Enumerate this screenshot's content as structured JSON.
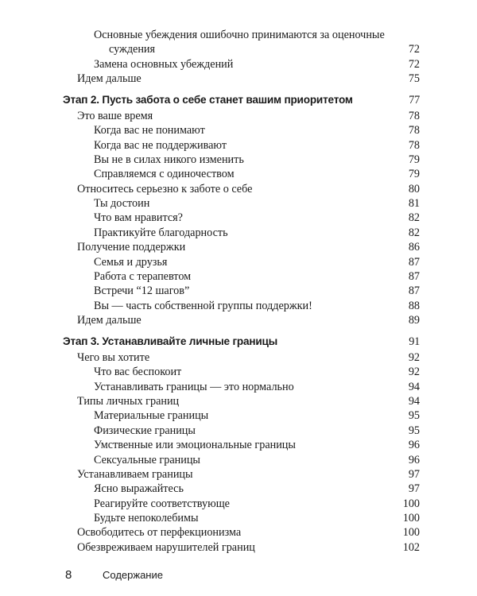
{
  "entries": [
    {
      "level": 2,
      "text": "Основные убеждения ошибочно принимаются за оценочные",
      "page": ""
    },
    {
      "level": "cont",
      "text": "суждения",
      "page": "72"
    },
    {
      "level": 2,
      "text": "Замена основных убеждений",
      "page": "72"
    },
    {
      "level": 1,
      "text": "Идем дальше",
      "page": "75"
    },
    {
      "level": 0,
      "text": "Этап 2. Пусть забота о себе станет вашим приоритетом",
      "page": "77"
    },
    {
      "level": 1,
      "text": "Это ваше время",
      "page": "78"
    },
    {
      "level": 2,
      "text": "Когда вас не понимают",
      "page": "78"
    },
    {
      "level": 2,
      "text": "Когда вас не поддерживают",
      "page": "78"
    },
    {
      "level": 2,
      "text": "Вы не в силах никого изменить",
      "page": "79"
    },
    {
      "level": 2,
      "text": "Справляемся с одиночеством",
      "page": "79"
    },
    {
      "level": 1,
      "text": "Относитесь серьезно к заботе о себе",
      "page": "80"
    },
    {
      "level": 2,
      "text": "Ты достоин",
      "page": "81"
    },
    {
      "level": 2,
      "text": "Что вам нравится?",
      "page": "82"
    },
    {
      "level": 2,
      "text": "Практикуйте благодарность",
      "page": "82"
    },
    {
      "level": 1,
      "text": "Получение поддержки",
      "page": "86"
    },
    {
      "level": 2,
      "text": "Семья и друзья",
      "page": "87"
    },
    {
      "level": 2,
      "text": "Работа с терапевтом",
      "page": "87"
    },
    {
      "level": 2,
      "text": "Встречи “12 шагов”",
      "page": "87"
    },
    {
      "level": 2,
      "text": "Вы — часть собственной группы поддержки!",
      "page": "88"
    },
    {
      "level": 1,
      "text": "Идем дальше",
      "page": "89"
    },
    {
      "level": 0,
      "text": "Этап 3. Устанавливайте личные границы",
      "page": "91"
    },
    {
      "level": 1,
      "text": "Чего вы хотите",
      "page": "92"
    },
    {
      "level": 2,
      "text": "Что вас беспокоит",
      "page": "92"
    },
    {
      "level": 2,
      "text": "Устанавливать границы — это нормально",
      "page": "94"
    },
    {
      "level": 1,
      "text": "Типы личных границ",
      "page": "94"
    },
    {
      "level": 2,
      "text": "Материальные границы",
      "page": "95"
    },
    {
      "level": 2,
      "text": "Физические границы",
      "page": "95"
    },
    {
      "level": 2,
      "text": "Умственные или эмоциональные границы",
      "page": "96"
    },
    {
      "level": 2,
      "text": "Сексуальные границы",
      "page": "96"
    },
    {
      "level": 1,
      "text": "Устанавливаем границы",
      "page": "97"
    },
    {
      "level": 2,
      "text": "Ясно выражайтесь",
      "page": "97"
    },
    {
      "level": 2,
      "text": "Реагируйте соответствующе",
      "page": "100"
    },
    {
      "level": 2,
      "text": "Будьте непоколебимы",
      "page": "100"
    },
    {
      "level": 1,
      "text": "Освободитесь от перфекционизма",
      "page": "100"
    },
    {
      "level": 1,
      "text": "Обезвреживаем нарушителей границ",
      "page": "102"
    }
  ],
  "footer": {
    "page_number": "8",
    "section": "Содержание"
  }
}
